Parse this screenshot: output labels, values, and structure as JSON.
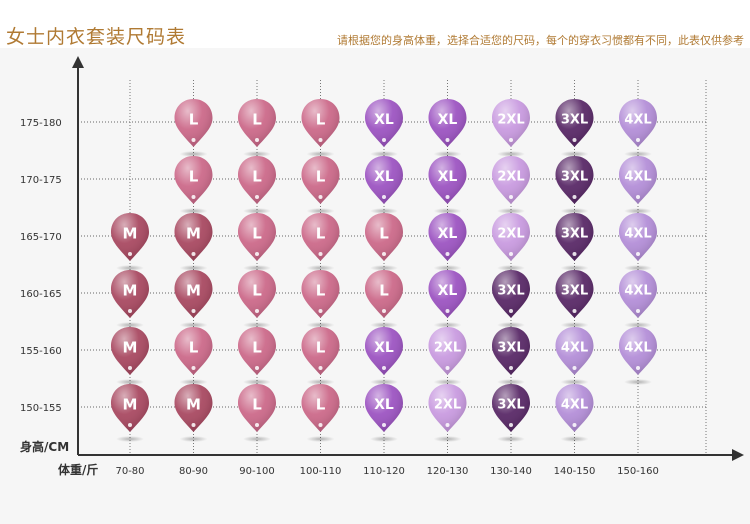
{
  "title": "女士内衣套装尺码表",
  "subtitle": "请根据您的身高体重，选择合适您的尺码，每个的穿衣习惯都有不同，此表仅供参考",
  "chart_data": {
    "type": "table",
    "xlabel": "体重/斤",
    "ylabel": "身高/CM",
    "x_categories": [
      "70-80",
      "80-90",
      "90-100",
      "100-110",
      "110-120",
      "120-130",
      "130-140",
      "140-150",
      "150-160"
    ],
    "y_categories": [
      "175-180",
      "170-175",
      "165-170",
      "160-165",
      "155-160",
      "150-155"
    ],
    "cells": [
      [
        "",
        "L",
        "L",
        "L",
        "XL",
        "XL",
        "2XL",
        "3XL",
        "4XL"
      ],
      [
        "",
        "L",
        "L",
        "L",
        "XL",
        "XL",
        "2XL",
        "3XL",
        "4XL"
      ],
      [
        "M",
        "M",
        "L",
        "L",
        "L",
        "XL",
        "2XL",
        "3XL",
        "4XL"
      ],
      [
        "M",
        "M",
        "L",
        "L",
        "L",
        "XL",
        "3XL",
        "3XL",
        "4XL"
      ],
      [
        "M",
        "L",
        "L",
        "L",
        "XL",
        "2XL",
        "3XL",
        "4XL",
        "4XL"
      ],
      [
        "M",
        "M",
        "L",
        "L",
        "XL",
        "2XL",
        "3XL",
        "4XL",
        ""
      ]
    ],
    "size_colors": {
      "M": "#a94a62",
      "L": "#cc6a8a",
      "XL": "#9d55c2",
      "2XL": "#c99be0",
      "3XL": "#5a2a68",
      "4XL": "#b48fd8"
    },
    "grid": "dotted"
  }
}
